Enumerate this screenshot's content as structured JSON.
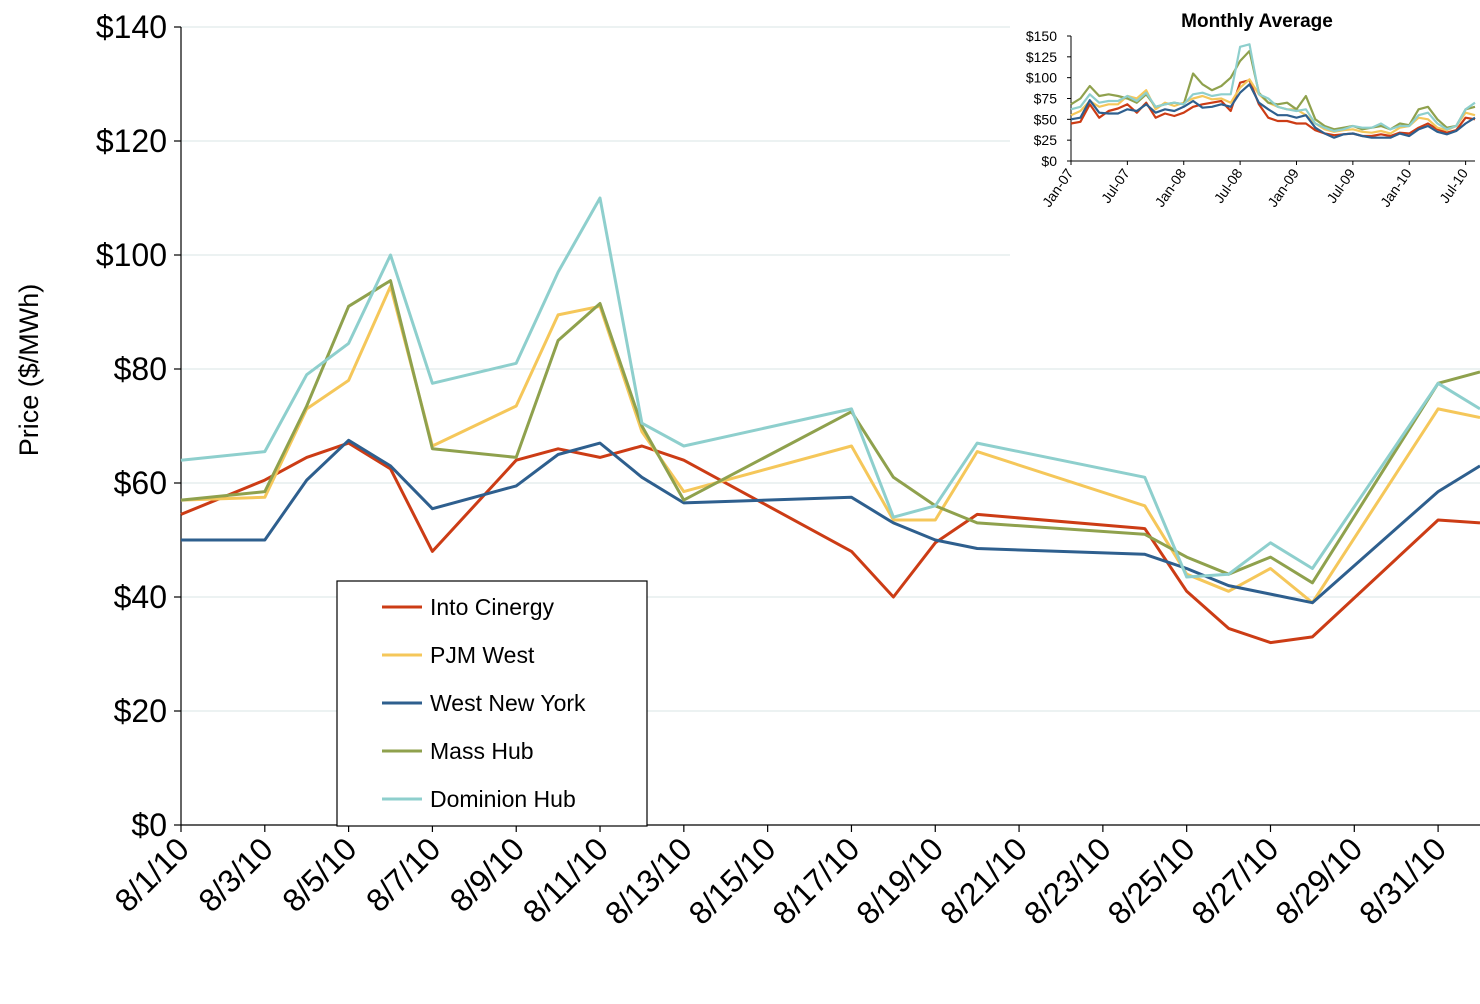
{
  "colors": {
    "background": "#ffffff",
    "gridline": "#d9e4e4",
    "axis": "#000000",
    "into_cinergy": "#cc3c15",
    "pjm_west": "#f5c75a",
    "west_new_york": "#2e5f8e",
    "mass_hub": "#8fa14d",
    "dominion_hub": "#8ecfcd"
  },
  "chart_data": [
    {
      "type": "line",
      "title": "",
      "xlabel": "",
      "ylabel": "Price ($/MWh)",
      "ylim": [
        0,
        140
      ],
      "yticks": [
        "$0",
        "$20",
        "$40",
        "$60",
        "$80",
        "$100",
        "$120",
        "$140"
      ],
      "xlim": [
        1,
        31
      ],
      "xticks": [
        "8/1/10",
        "8/3/10",
        "8/5/10",
        "8/7/10",
        "8/9/10",
        "8/11/10",
        "8/13/10",
        "8/15/10",
        "8/17/10",
        "8/19/10",
        "8/21/10",
        "8/23/10",
        "8/25/10",
        "8/27/10",
        "8/29/10",
        "8/31/10"
      ],
      "grid": true,
      "legend": "bottom-left",
      "x": [
        1,
        3,
        4,
        5,
        6,
        7,
        9,
        10,
        11,
        12,
        13,
        17,
        18,
        19,
        20,
        24,
        25,
        26,
        27,
        28,
        31,
        32
      ],
      "series": [
        {
          "name": "Into Cinergy",
          "color_key": "into_cinergy",
          "values": [
            54.5,
            60.5,
            64.5,
            67,
            62.5,
            48,
            64,
            66,
            64.5,
            66.5,
            64,
            48,
            40,
            49.5,
            54.5,
            52,
            41,
            34.5,
            32,
            33,
            53.5,
            53
          ]
        },
        {
          "name": "PJM West",
          "color_key": "pjm_west",
          "values": [
            57,
            57.5,
            73,
            78,
            94.5,
            66.5,
            73.5,
            89.5,
            91,
            69,
            58.5,
            66.5,
            53.5,
            53.5,
            65.5,
            56,
            44,
            41,
            45,
            39,
            73,
            71.5
          ]
        },
        {
          "name": "West New York",
          "color_key": "west_new_york",
          "values": [
            50,
            50,
            60.5,
            67.5,
            63,
            55.5,
            59.5,
            65,
            67,
            61,
            56.5,
            57.5,
            53,
            50,
            48.5,
            47.5,
            45,
            42,
            40.5,
            39,
            58.5,
            63
          ]
        },
        {
          "name": "Mass Hub",
          "color_key": "mass_hub",
          "values": [
            57,
            58.5,
            73.5,
            91,
            95.5,
            66,
            64.5,
            85,
            91.5,
            70,
            57,
            72.5,
            61,
            56,
            53,
            51,
            47,
            44,
            47,
            42.5,
            77.5,
            79.5
          ]
        },
        {
          "name": "Dominion Hub",
          "color_key": "dominion_hub",
          "values": [
            64,
            65.5,
            79,
            84.5,
            100,
            77.5,
            81,
            97,
            110,
            70.5,
            66.5,
            73,
            54,
            56,
            67,
            61,
            43.5,
            44,
            49.5,
            45,
            77.5,
            73
          ]
        }
      ]
    },
    {
      "type": "line",
      "title": "Monthly Average",
      "xlabel": "",
      "ylabel": "",
      "ylim": [
        0,
        150
      ],
      "yticks": [
        "$0",
        "$25",
        "$50",
        "$75",
        "$100",
        "$125",
        "$150"
      ],
      "xticks": [
        "Jan-07",
        "Jul-07",
        "Jan-08",
        "Jul-08",
        "Jan-09",
        "Jul-09",
        "Jan-10",
        "Jul-10"
      ],
      "grid": false,
      "legend": "none",
      "x": [
        "Jan-07",
        "Feb-07",
        "Mar-07",
        "Apr-07",
        "May-07",
        "Jun-07",
        "Jul-07",
        "Aug-07",
        "Sep-07",
        "Oct-07",
        "Nov-07",
        "Dec-07",
        "Jan-08",
        "Feb-08",
        "Mar-08",
        "Apr-08",
        "May-08",
        "Jun-08",
        "Jul-08",
        "Aug-08",
        "Sep-08",
        "Oct-08",
        "Nov-08",
        "Dec-08",
        "Jan-09",
        "Feb-09",
        "Mar-09",
        "Apr-09",
        "May-09",
        "Jun-09",
        "Jul-09",
        "Aug-09",
        "Sep-09",
        "Oct-09",
        "Nov-09",
        "Dec-09",
        "Jan-10",
        "Feb-10",
        "Mar-10",
        "Apr-10",
        "May-10",
        "Jun-10",
        "Jul-10",
        "Aug-10"
      ],
      "series": [
        {
          "name": "Into Cinergy",
          "color_key": "into_cinergy",
          "values": [
            45,
            47,
            68,
            52,
            60,
            63,
            68,
            58,
            70,
            52,
            57,
            54,
            58,
            65,
            68,
            70,
            72,
            60,
            94,
            97,
            68,
            52,
            48,
            48,
            45,
            45,
            37,
            33,
            31,
            32,
            33,
            30,
            30,
            32,
            30,
            34,
            33,
            40,
            45,
            38,
            34,
            37,
            52,
            50
          ]
        },
        {
          "name": "PJM West",
          "color_key": "pjm_west",
          "values": [
            55,
            60,
            72,
            65,
            68,
            68,
            78,
            75,
            85,
            62,
            70,
            66,
            70,
            75,
            78,
            74,
            75,
            70,
            88,
            98,
            80,
            70,
            65,
            62,
            62,
            55,
            45,
            38,
            35,
            37,
            38,
            35,
            34,
            36,
            33,
            40,
            42,
            52,
            50,
            40,
            37,
            42,
            58,
            55
          ]
        },
        {
          "name": "West New York",
          "color_key": "west_new_york",
          "values": [
            50,
            52,
            73,
            58,
            57,
            57,
            62,
            60,
            68,
            58,
            62,
            60,
            65,
            72,
            64,
            65,
            68,
            65,
            82,
            92,
            70,
            62,
            55,
            55,
            52,
            55,
            40,
            33,
            28,
            32,
            33,
            30,
            28,
            28,
            28,
            33,
            30,
            38,
            42,
            35,
            32,
            36,
            45,
            52
          ]
        },
        {
          "name": "Mass Hub",
          "color_key": "mass_hub",
          "values": [
            68,
            75,
            90,
            78,
            80,
            78,
            75,
            70,
            80,
            65,
            68,
            70,
            68,
            105,
            92,
            85,
            90,
            100,
            120,
            132,
            82,
            70,
            68,
            70,
            62,
            78,
            50,
            42,
            38,
            40,
            42,
            38,
            40,
            42,
            38,
            45,
            43,
            62,
            65,
            50,
            40,
            42,
            62,
            65
          ]
        },
        {
          "name": "Dominion Hub",
          "color_key": "dominion_hub",
          "values": [
            62,
            65,
            80,
            70,
            72,
            72,
            78,
            72,
            82,
            65,
            68,
            70,
            68,
            80,
            82,
            78,
            80,
            80,
            137,
            140,
            80,
            75,
            65,
            62,
            60,
            62,
            45,
            40,
            36,
            38,
            42,
            40,
            40,
            45,
            38,
            42,
            42,
            55,
            58,
            45,
            38,
            42,
            62,
            70
          ]
        }
      ]
    }
  ]
}
